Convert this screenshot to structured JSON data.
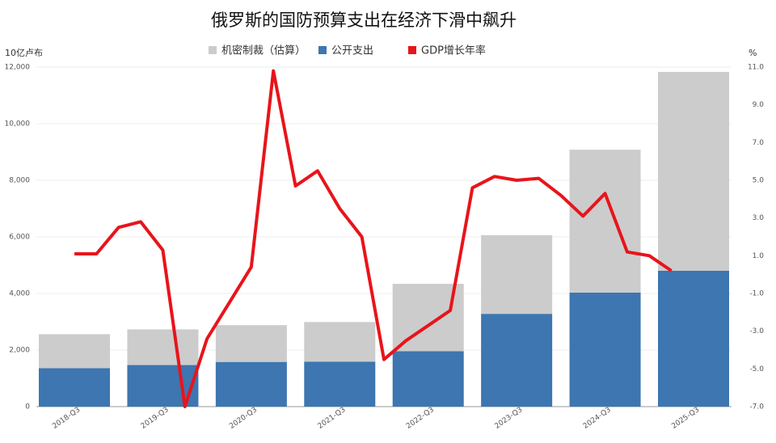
{
  "chart_data": {
    "type": "bar",
    "title": "俄罗斯的国防预算支出在经济下滑中飙升",
    "y_label": "10亿卢布",
    "y2_label": "%",
    "stacked": true,
    "categories": [
      "2018-Q3",
      null,
      null,
      null,
      "2019-Q3",
      null,
      null,
      null,
      "2020-Q3",
      null,
      null,
      null,
      "2021-Q3",
      null,
      null,
      null,
      "2022-Q3",
      null,
      null,
      null,
      "2023-Q3",
      null,
      null,
      null,
      "2024-Q3",
      null,
      null,
      null,
      "2025-Q3"
    ],
    "series": [
      {
        "name": "机密制裁（估算）",
        "type": "bar",
        "color": "#cccccc",
        "values": [
          1200,
          null,
          null,
          null,
          1260,
          null,
          null,
          null,
          1300,
          null,
          null,
          null,
          1400,
          null,
          null,
          null,
          2380,
          null,
          null,
          null,
          2780,
          null,
          null,
          null,
          5050,
          null,
          null,
          null,
          7030
        ]
      },
      {
        "name": "公开支出",
        "type": "bar",
        "color": "#3d76b0",
        "values": [
          1360,
          null,
          null,
          null,
          1470,
          null,
          null,
          null,
          1580,
          null,
          null,
          null,
          1590,
          null,
          null,
          null,
          1960,
          null,
          null,
          null,
          3280,
          null,
          null,
          null,
          4030,
          null,
          null,
          null,
          4800
        ]
      },
      {
        "name": "GDP增长年率",
        "type": "line",
        "color": "#e8141b",
        "axis": "y2",
        "values": [
          1.1,
          1.1,
          2.5,
          2.8,
          1.3,
          -7.0,
          -3.4,
          -1.5,
          0.4,
          10.8,
          4.7,
          5.5,
          3.5,
          2.0,
          -4.5,
          -3.5,
          -2.7,
          -1.9,
          4.6,
          5.2,
          5.0,
          5.1,
          4.2,
          3.1,
          4.3,
          1.2,
          1.0,
          0.2,
          null
        ]
      }
    ],
    "ylim": [
      0,
      12000
    ],
    "yticks": [
      0,
      {
        "value": 2000,
        "label": "2,000"
      },
      {
        "value": 4000,
        "label": "4,000"
      },
      {
        "value": 6000,
        "label": "6,000"
      },
      {
        "value": 8000,
        "label": "8,000"
      },
      {
        "value": 10000,
        "label": "10,000"
      },
      {
        "value": 12000,
        "label": "12,000"
      }
    ],
    "y2lim": [
      -7.0,
      11.0
    ],
    "y2ticks": [
      {
        "value": -7.0,
        "label": "-7.0"
      },
      {
        "value": -5.0,
        "label": "-5.0"
      },
      {
        "value": -3.0,
        "label": "-3.0"
      },
      {
        "value": -1.0,
        "label": "-1.0"
      },
      {
        "value": 1.0,
        "label": "1.0"
      },
      {
        "value": 3.0,
        "label": "3.0"
      },
      {
        "value": 5.0,
        "label": "5.0"
      },
      {
        "value": 7.0,
        "label": "7.0"
      },
      {
        "value": 9.0,
        "label": "9.0"
      },
      {
        "value": 11.0,
        "label": "11.0"
      }
    ],
    "grid": true
  }
}
